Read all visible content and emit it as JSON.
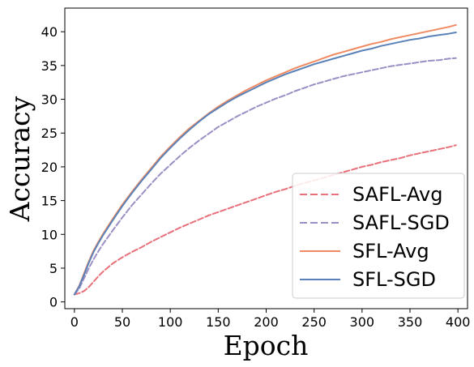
{
  "chart_data": {
    "type": "line",
    "xlabel": "Epoch",
    "ylabel": "Accuracy",
    "xlim": [
      -10,
      410
    ],
    "ylim": [
      -1,
      43.5
    ],
    "xticks": [
      0,
      50,
      100,
      150,
      200,
      250,
      300,
      350,
      400
    ],
    "yticks": [
      0,
      5,
      10,
      15,
      20,
      25,
      30,
      35,
      40
    ],
    "grid": false,
    "legend_position": "lower-right",
    "series": [
      {
        "name": "SAFL-Avg",
        "color": "#e8707a",
        "dash": "dashed",
        "x": [
          0,
          5,
          10,
          15,
          20,
          25,
          30,
          40,
          50,
          60,
          70,
          80,
          90,
          100,
          110,
          120,
          130,
          140,
          150,
          160,
          170,
          180,
          190,
          200,
          210,
          220,
          230,
          240,
          250,
          260,
          270,
          280,
          290,
          300,
          310,
          320,
          330,
          340,
          350,
          360,
          370,
          380,
          390,
          398
        ],
        "y": [
          1.1,
          1.3,
          1.6,
          2.2,
          3.0,
          3.8,
          4.5,
          5.7,
          6.6,
          7.4,
          8.1,
          8.9,
          9.6,
          10.3,
          11.0,
          11.6,
          12.2,
          12.8,
          13.3,
          13.8,
          14.3,
          14.8,
          15.3,
          15.8,
          16.3,
          16.7,
          17.2,
          17.6,
          18.0,
          18.4,
          18.8,
          19.2,
          19.6,
          20.0,
          20.3,
          20.7,
          21.0,
          21.3,
          21.7,
          22.0,
          22.3,
          22.6,
          22.9,
          23.2
        ]
      },
      {
        "name": "SAFL-SGD",
        "color": "#9b8ec4",
        "dash": "dashed",
        "x": [
          0,
          5,
          10,
          15,
          20,
          25,
          30,
          40,
          50,
          60,
          70,
          80,
          90,
          100,
          110,
          120,
          130,
          140,
          150,
          160,
          170,
          180,
          190,
          200,
          210,
          220,
          230,
          240,
          250,
          260,
          270,
          280,
          290,
          300,
          310,
          320,
          330,
          340,
          350,
          360,
          370,
          380,
          390,
          398
        ],
        "y": [
          1.1,
          2.0,
          3.5,
          5.0,
          6.3,
          7.5,
          8.6,
          10.6,
          12.5,
          14.3,
          15.9,
          17.5,
          19.0,
          20.3,
          21.6,
          22.8,
          23.9,
          24.9,
          25.9,
          26.7,
          27.5,
          28.2,
          28.9,
          29.5,
          30.1,
          30.6,
          31.2,
          31.7,
          32.2,
          32.6,
          33.0,
          33.4,
          33.7,
          34.0,
          34.3,
          34.6,
          34.9,
          35.1,
          35.3,
          35.5,
          35.7,
          35.8,
          36.0,
          36.1
        ]
      },
      {
        "name": "SFL-Avg",
        "color": "#f08a62",
        "dash": "solid",
        "x": [
          0,
          5,
          10,
          15,
          20,
          25,
          30,
          40,
          50,
          60,
          70,
          80,
          90,
          100,
          110,
          120,
          130,
          140,
          150,
          160,
          170,
          180,
          190,
          200,
          210,
          220,
          230,
          240,
          250,
          260,
          270,
          280,
          290,
          300,
          310,
          320,
          330,
          340,
          350,
          360,
          370,
          380,
          390,
          398
        ],
        "y": [
          1.1,
          2.4,
          4.2,
          6.0,
          7.6,
          8.9,
          10.1,
          12.3,
          14.4,
          16.3,
          18.1,
          19.8,
          21.5,
          23.0,
          24.4,
          25.7,
          26.8,
          27.9,
          28.9,
          29.8,
          30.6,
          31.4,
          32.1,
          32.8,
          33.4,
          34.0,
          34.6,
          35.1,
          35.6,
          36.1,
          36.6,
          37.0,
          37.4,
          37.8,
          38.2,
          38.5,
          38.9,
          39.2,
          39.5,
          39.8,
          40.1,
          40.4,
          40.7,
          41.0
        ]
      },
      {
        "name": "SFL-SGD",
        "color": "#5a82b8",
        "dash": "solid",
        "x": [
          0,
          5,
          10,
          15,
          20,
          25,
          30,
          40,
          50,
          60,
          70,
          80,
          90,
          100,
          110,
          120,
          130,
          140,
          150,
          160,
          170,
          180,
          190,
          200,
          210,
          220,
          230,
          240,
          250,
          260,
          270,
          280,
          290,
          300,
          310,
          320,
          330,
          340,
          350,
          360,
          370,
          380,
          390,
          398
        ],
        "y": [
          1.1,
          2.3,
          4.0,
          5.8,
          7.4,
          8.7,
          9.9,
          12.1,
          14.2,
          16.1,
          17.9,
          19.6,
          21.3,
          22.8,
          24.2,
          25.5,
          26.7,
          27.8,
          28.7,
          29.6,
          30.4,
          31.1,
          31.8,
          32.5,
          33.1,
          33.7,
          34.2,
          34.7,
          35.2,
          35.6,
          36.0,
          36.4,
          36.8,
          37.2,
          37.5,
          37.9,
          38.2,
          38.5,
          38.8,
          39.0,
          39.3,
          39.5,
          39.7,
          39.9
        ]
      }
    ]
  }
}
